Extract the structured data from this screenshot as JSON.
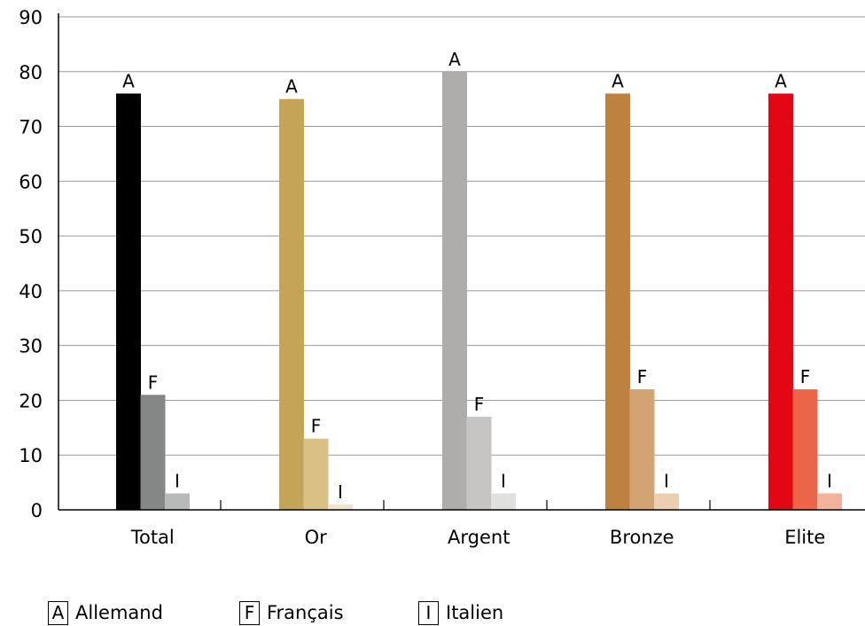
{
  "chart_data": {
    "type": "bar",
    "categories": [
      "Total",
      "Or",
      "Argent",
      "Bronze",
      "Elite"
    ],
    "series": [
      {
        "name": "Allemand",
        "key": "A",
        "values": [
          76,
          75,
          80,
          76,
          76
        ]
      },
      {
        "name": "Français",
        "key": "F",
        "values": [
          21,
          13,
          17,
          22,
          22
        ]
      },
      {
        "name": "Italien",
        "key": "I",
        "values": [
          3,
          1,
          3,
          3,
          3
        ]
      }
    ],
    "ylim": [
      0,
      90
    ],
    "yticks": [
      0,
      10,
      20,
      30,
      40,
      50,
      60,
      70,
      80,
      90
    ],
    "grid": true,
    "legend_position": "bottom-left",
    "title": "",
    "xlabel": "",
    "ylabel": "",
    "colors": [
      [
        "#000000",
        "#858686",
        "#b8b9b9"
      ],
      [
        "#c4a457",
        "#d9c085",
        "#efe5cd"
      ],
      [
        "#aeadab",
        "#c6c5c3",
        "#e0e0de"
      ],
      [
        "#bd8240",
        "#d3a473",
        "#ebcfae"
      ],
      [
        "#e30613",
        "#eb6549",
        "#f3b29b"
      ]
    ]
  },
  "legend": [
    {
      "key": "A",
      "label": "Allemand"
    },
    {
      "key": "F",
      "label": "Français"
    },
    {
      "key": "I",
      "label": "Italien"
    }
  ]
}
